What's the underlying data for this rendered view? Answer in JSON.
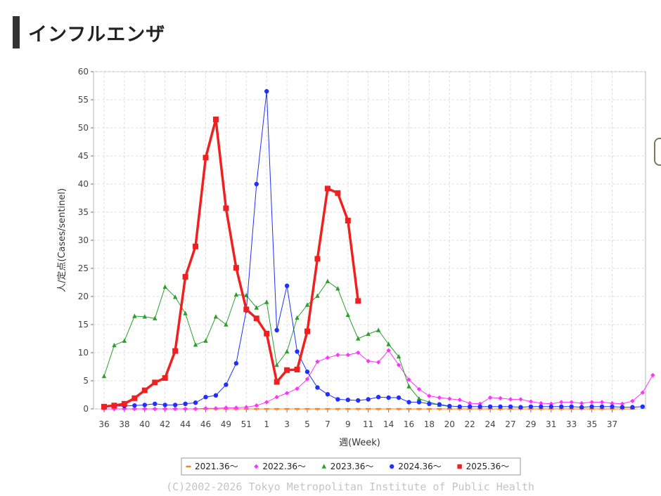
{
  "page": {
    "heading": "インフルエンザ"
  },
  "chart_data": {
    "type": "line",
    "title": "",
    "xlabel": "週(Week)",
    "ylabel": "人/定点(Cases/sentinel)",
    "ylim": [
      0,
      60
    ],
    "yticks": [
      0,
      5,
      10,
      15,
      20,
      25,
      30,
      35,
      40,
      45,
      50,
      55,
      60
    ],
    "xticks": [
      "36",
      "38",
      "40",
      "42",
      "44",
      "46",
      "49",
      "51",
      "1",
      "3",
      "5",
      "7",
      "9",
      "11",
      "14",
      "16",
      "18",
      "20",
      "22",
      "24",
      "27",
      "29",
      "31",
      "33",
      "35",
      "37"
    ],
    "grid": true,
    "legend_position": "bottom",
    "copyright": "(C)2002-2026 Tokyo Metropolitan Institute of Public Health",
    "series": [
      {
        "name": "2021.36〜",
        "color": "#ff7f27",
        "marker": "dash",
        "width": 1,
        "values": [
          0,
          0,
          0,
          0,
          0,
          0,
          0,
          0,
          0,
          0,
          0,
          0,
          0,
          0,
          0,
          0,
          0,
          0,
          0,
          0,
          0,
          0,
          0,
          0,
          0,
          0,
          0,
          0,
          0,
          0,
          0,
          0,
          0,
          0,
          0,
          0,
          0,
          0,
          0,
          0,
          0,
          0,
          0,
          0,
          0,
          0,
          0,
          0,
          0,
          0,
          0,
          0,
          0
        ]
      },
      {
        "name": "2022.36〜",
        "color": "#ff33ff",
        "marker": "diamond",
        "width": 1,
        "values": [
          0,
          0,
          0,
          0,
          0,
          0,
          0,
          0,
          0,
          0,
          0.1,
          0.1,
          0.2,
          0.2,
          0.3,
          0.6,
          1.2,
          2.1,
          2.8,
          3.6,
          5.3,
          8.4,
          9.1,
          9.6,
          9.6,
          10.0,
          8.5,
          8.3,
          10.4,
          7.8,
          5.2,
          3.5,
          2.3,
          2.0,
          1.8,
          1.6,
          1.0,
          0.9,
          2.0,
          1.9,
          1.7,
          1.7,
          1.3,
          1.0,
          0.9,
          1.2,
          1.2,
          1.0,
          1.2,
          1.2,
          1.0,
          0.9,
          1.4,
          2.9,
          6.0
        ]
      },
      {
        "name": "2023.36〜",
        "color": "#2aa02a",
        "marker": "triangle",
        "width": 1,
        "values": [
          5.8,
          11.3,
          12.1,
          16.5,
          16.4,
          16.1,
          21.7,
          19.9,
          17.0,
          11.4,
          12.1,
          16.4,
          15.0,
          20.3,
          20.2,
          18.0,
          19.0,
          7.8,
          10.2,
          16.2,
          18.5,
          20.1,
          22.7,
          21.4,
          16.7,
          12.5,
          13.3,
          14.0,
          11.5,
          9.3,
          4.0,
          1.8,
          1.2,
          0.7,
          0.4
        ]
      },
      {
        "name": "2024.36〜",
        "color": "#1f2fff",
        "marker": "circle",
        "width": 1,
        "values": [
          0.4,
          0.5,
          0.5,
          0.6,
          0.7,
          0.9,
          0.7,
          0.7,
          0.9,
          1.1,
          2.1,
          2.4,
          4.3,
          8.1,
          17.5,
          40.0,
          56.5,
          14.0,
          21.9,
          10.2,
          6.6,
          3.8,
          2.6,
          1.7,
          1.6,
          1.5,
          1.7,
          2.1,
          2.0,
          2.0,
          1.2,
          1.2,
          0.9,
          0.8,
          0.5,
          0.4,
          0.4,
          0.4,
          0.4,
          0.4,
          0.4,
          0.3,
          0.4,
          0.4,
          0.4,
          0.4,
          0.4,
          0.3,
          0.4,
          0.4,
          0.4,
          0.3,
          0.3,
          0.4
        ]
      },
      {
        "name": "2025.36〜",
        "color": "#f02020",
        "marker": "square",
        "width": 3.5,
        "values": [
          0.4,
          0.6,
          0.9,
          1.9,
          3.3,
          4.7,
          5.5,
          10.3,
          23.5,
          28.9,
          44.7,
          51.5,
          35.7,
          25.1,
          17.7,
          16.1,
          13.4,
          4.8,
          6.9,
          7.0,
          13.8,
          26.7,
          39.2,
          38.4,
          33.5,
          19.2
        ]
      }
    ]
  }
}
